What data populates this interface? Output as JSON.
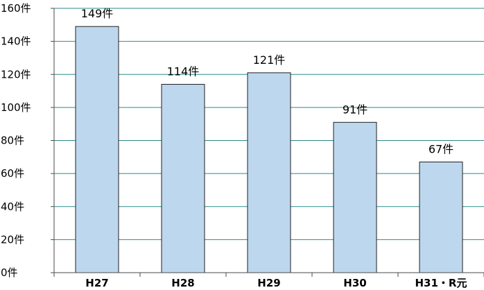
{
  "chart_data": {
    "type": "bar",
    "title": "",
    "xlabel": "",
    "ylabel": "",
    "categories": [
      "H27",
      "H28",
      "H29",
      "H30",
      "H31・R元"
    ],
    "values": [
      149,
      114,
      121,
      91,
      67
    ],
    "data_labels": [
      "149件",
      "114件",
      "121件",
      "91件",
      "67件"
    ],
    "y_ticks": [
      0,
      20,
      40,
      60,
      80,
      100,
      120,
      140,
      160
    ],
    "y_tick_labels": [
      "0件",
      "20件",
      "40件",
      "60件",
      "80件",
      "100件",
      "120件",
      "140件",
      "160件"
    ],
    "ylim": [
      0,
      160
    ],
    "grid": true,
    "colors": {
      "bar_fill": "#bdd7ee",
      "bar_stroke": "#1f1f1f",
      "grid": "#2b8a8a",
      "axis": "#4a4a4a"
    }
  }
}
